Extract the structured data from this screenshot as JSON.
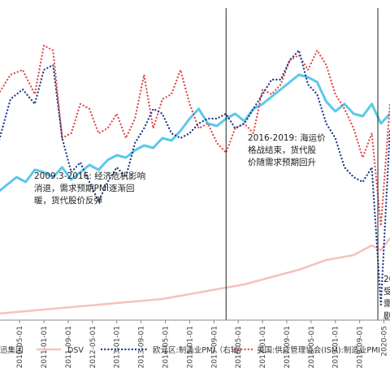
{
  "chart_data": {
    "type": "line",
    "x_ticks": [
      "2010-05-01",
      "2011-01-01",
      "2011-09-01",
      "2012-05-01",
      "2013-01-01",
      "2013-09-01",
      "2014-05-01",
      "2015-01-01",
      "2015-09-01",
      "2016-05-01",
      "2017-01-01",
      "2017-09-01",
      "2018-05-01",
      "2019-01-01",
      "2019-09-01",
      "2020-05"
    ],
    "xlim": [
      "2009-10-01",
      "2020-07-01"
    ],
    "series": [
      {
        "name": "迅集团",
        "color": "#5bc8ec",
        "style": "solid",
        "dates": [
          "2009-10",
          "2010-01",
          "2010-04",
          "2010-07",
          "2010-10",
          "2011-01",
          "2011-04",
          "2011-07",
          "2011-10",
          "2012-01",
          "2012-04",
          "2012-07",
          "2012-10",
          "2013-01",
          "2013-04",
          "2013-07",
          "2013-10",
          "2014-01",
          "2014-04",
          "2014-07",
          "2014-10",
          "2015-01",
          "2015-04",
          "2015-07",
          "2015-10",
          "2016-01",
          "2016-04",
          "2016-07",
          "2016-10",
          "2017-01",
          "2017-04",
          "2017-07",
          "2017-10",
          "2018-01",
          "2018-04",
          "2018-07",
          "2018-10",
          "2019-01",
          "2019-04",
          "2019-07",
          "2019-10",
          "2020-01",
          "2020-04",
          "2020-07"
        ],
        "values": [
          52,
          55,
          58,
          56,
          61,
          60,
          58,
          62,
          57,
          60,
          63,
          61,
          65,
          67,
          66,
          69,
          71,
          70,
          74,
          73,
          77,
          82,
          86,
          80,
          79,
          82,
          84,
          81,
          86,
          88,
          91,
          94,
          97,
          100,
          99,
          97,
          89,
          85,
          88,
          84,
          83,
          88,
          80,
          84
        ]
      },
      {
        "name": "DSV",
        "color": "#f4c2c0",
        "style": "solid",
        "dates": [
          "2009-10",
          "2010-07",
          "2011-04",
          "2012-01",
          "2012-10",
          "2013-07",
          "2014-04",
          "2015-01",
          "2015-10",
          "2016-07",
          "2017-04",
          "2018-01",
          "2018-10",
          "2019-07",
          "2020-01",
          "2020-04",
          "2020-07"
        ],
        "values": [
          2,
          3,
          4,
          5,
          6,
          7,
          8,
          10,
          12,
          14,
          17,
          20,
          24,
          26,
          30,
          28,
          33
        ]
      },
      {
        "name": "欧元区:制造业PMI（右轴)",
        "color": "#1f3a8a",
        "style": "dotted",
        "dates": [
          "2009-10",
          "2010-02",
          "2010-06",
          "2010-10",
          "2011-01",
          "2011-04",
          "2011-07",
          "2011-10",
          "2012-01",
          "2012-04",
          "2012-07",
          "2012-10",
          "2013-01",
          "2013-04",
          "2013-07",
          "2013-10",
          "2014-01",
          "2014-04",
          "2014-07",
          "2014-10",
          "2015-01",
          "2015-04",
          "2015-07",
          "2015-10",
          "2016-01",
          "2016-04",
          "2016-07",
          "2016-10",
          "2017-01",
          "2017-04",
          "2017-07",
          "2017-10",
          "2018-01",
          "2018-04",
          "2018-07",
          "2018-10",
          "2019-01",
          "2019-04",
          "2019-07",
          "2019-10",
          "2020-01",
          "2020-04",
          "2020-07"
        ],
        "values": [
          50.0,
          54.5,
          55.5,
          54.0,
          57.5,
          58.0,
          50.5,
          47.0,
          48.0,
          46.0,
          44.0,
          46.0,
          47.5,
          46.5,
          50.0,
          51.5,
          53.5,
          53.0,
          51.0,
          50.5,
          51.0,
          52.0,
          52.5,
          52.5,
          53.0,
          51.5,
          52.0,
          53.5,
          55.0,
          56.5,
          56.5,
          58.5,
          59.5,
          56.0,
          55.0,
          52.0,
          50.5,
          47.5,
          46.5,
          46.0,
          47.5,
          33.4,
          51.5
        ]
      },
      {
        "name": "美国:供应管理协会(ISM):制造业PMI",
        "color": "#e04b4b",
        "style": "dotted",
        "dates": [
          "2009-10",
          "2010-02",
          "2010-06",
          "2010-10",
          "2011-01",
          "2011-04",
          "2011-07",
          "2011-10",
          "2012-01",
          "2012-04",
          "2012-07",
          "2012-10",
          "2013-01",
          "2013-04",
          "2013-07",
          "2013-10",
          "2014-01",
          "2014-04",
          "2014-07",
          "2014-10",
          "2015-01",
          "2015-04",
          "2015-07",
          "2015-10",
          "2016-01",
          "2016-04",
          "2016-07",
          "2016-10",
          "2017-01",
          "2017-04",
          "2017-07",
          "2017-10",
          "2018-01",
          "2018-04",
          "2018-07",
          "2018-10",
          "2019-01",
          "2019-04",
          "2019-07",
          "2019-10",
          "2020-01",
          "2020-04",
          "2020-07"
        ],
        "values": [
          55.0,
          57.0,
          57.5,
          55.0,
          60.0,
          59.5,
          50.5,
          51.0,
          54.0,
          53.5,
          51.0,
          51.5,
          53.0,
          50.5,
          52.5,
          57.0,
          51.5,
          54.5,
          55.0,
          57.5,
          54.0,
          51.5,
          52.0,
          50.0,
          49.0,
          51.5,
          52.0,
          51.0,
          55.5,
          55.0,
          56.0,
          58.5,
          59.0,
          57.5,
          59.5,
          58.0,
          55.0,
          53.5,
          51.5,
          48.5,
          51.0,
          41.5,
          54.0
        ]
      }
    ],
    "annotations": [
      {
        "date": "2016-01",
        "lines": [
          "2009.3-2016:  经济危机影响",
          "消退，需求预期PMI逐渐回",
          "暖，货代股价反弹"
        ]
      },
      {
        "date": "2016-01",
        "lines": [
          "2016-2019:  海运价",
          "格战结束，货代股",
          "价随需求预期回升"
        ]
      },
      {
        "date": "2020-03",
        "lines": [
          "20",
          "受",
          "需",
          "剧"
        ]
      }
    ],
    "legend": {
      "position": "bottom",
      "entries": [
        "迅集团",
        "DSV",
        "欧元区:制造业PMI（右轴)",
        "美国:供应管理协会(ISM):制造业PMI"
      ]
    },
    "grid": false
  }
}
